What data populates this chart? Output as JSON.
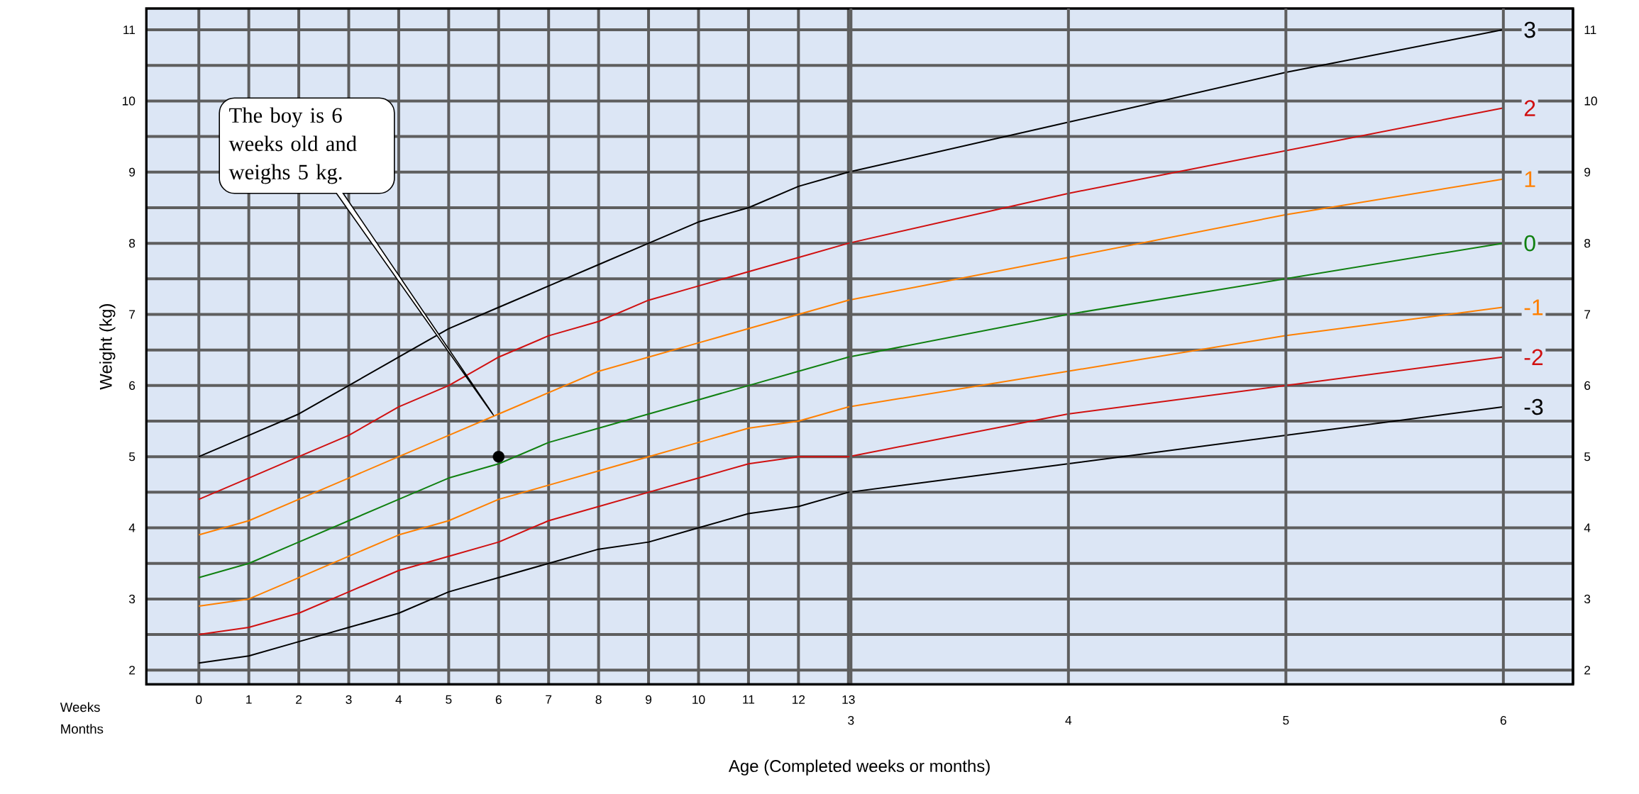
{
  "chart_data": {
    "type": "line",
    "xlabel": "Age (Completed weeks or months)",
    "ylabel": "Weight (kg)",
    "x": [
      0,
      1,
      2,
      3,
      4,
      5,
      6,
      7,
      8,
      9,
      10,
      11,
      12,
      13,
      17.39,
      21.74,
      26.09
    ],
    "series": [
      {
        "name": "3",
        "color": "#000000",
        "values": [
          5.0,
          5.3,
          5.6,
          6.0,
          6.4,
          6.8,
          7.1,
          7.4,
          7.7,
          8.0,
          8.3,
          8.5,
          8.8,
          9.0,
          9.7,
          10.4,
          11.0
        ]
      },
      {
        "name": "2",
        "color": "#d01010",
        "values": [
          4.4,
          4.7,
          5.0,
          5.3,
          5.7,
          6.0,
          6.4,
          6.7,
          6.9,
          7.2,
          7.4,
          7.6,
          7.8,
          8.0,
          8.7,
          9.3,
          9.9
        ]
      },
      {
        "name": "1",
        "color": "#ff8000",
        "values": [
          3.9,
          4.1,
          4.4,
          4.7,
          5.0,
          5.3,
          5.6,
          5.9,
          6.2,
          6.4,
          6.6,
          6.8,
          7.0,
          7.2,
          7.8,
          8.4,
          8.9
        ]
      },
      {
        "name": "0",
        "color": "#108010",
        "values": [
          3.3,
          3.5,
          3.8,
          4.1,
          4.4,
          4.7,
          4.9,
          5.2,
          5.4,
          5.6,
          5.8,
          6.0,
          6.2,
          6.4,
          7.0,
          7.5,
          8.0
        ]
      },
      {
        "name": "-1",
        "color": "#ff8000",
        "values": [
          2.9,
          3.0,
          3.3,
          3.6,
          3.9,
          4.1,
          4.4,
          4.6,
          4.8,
          5.0,
          5.2,
          5.4,
          5.5,
          5.7,
          6.2,
          6.7,
          7.1
        ]
      },
      {
        "name": "-2",
        "color": "#d01010",
        "values": [
          2.5,
          2.6,
          2.8,
          3.1,
          3.4,
          3.6,
          3.8,
          4.1,
          4.3,
          4.5,
          4.7,
          4.9,
          5.0,
          5.0,
          5.6,
          6.0,
          6.4
        ]
      },
      {
        "name": "-3",
        "color": "#000000",
        "values": [
          2.1,
          2.2,
          2.4,
          2.6,
          2.8,
          3.1,
          3.3,
          3.5,
          3.7,
          3.8,
          4.0,
          4.2,
          4.3,
          4.5,
          4.9,
          5.3,
          5.7
        ]
      },
      {
        "type": "scatter",
        "color": "#000000",
        "x": [
          6
        ],
        "values": [
          5.0
        ]
      }
    ],
    "xlim": [
      -1.05,
      27.5
    ],
    "xticks": [
      0,
      1,
      2,
      3,
      4,
      5,
      6,
      7,
      8,
      9,
      10,
      11,
      12,
      13
    ],
    "x2lim": [
      -0.24,
      6.32
    ],
    "x2ticks": [
      3,
      4,
      5,
      6
    ],
    "ylim": [
      1.8,
      11.3
    ],
    "yticks": [
      2,
      3,
      4,
      5,
      6,
      7,
      8,
      9,
      10,
      11
    ],
    "y2lim": [
      1.8,
      11.3
    ],
    "y2ticks": [
      2,
      3,
      4,
      5,
      6,
      7,
      8,
      9,
      10,
      11
    ],
    "grid": true,
    "line_style": "solid",
    "annotations": [
      "The boy is 6 weeks old and weighs 5 kg.",
      "Weeks",
      "Months"
    ]
  }
}
